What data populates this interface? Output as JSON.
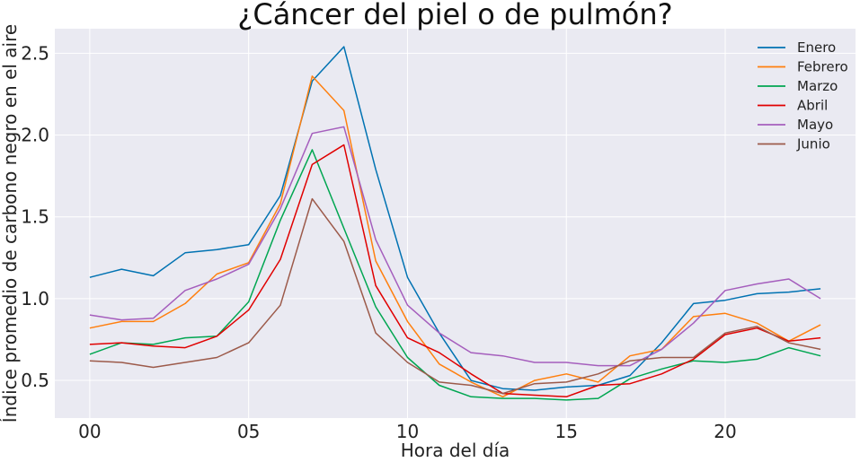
{
  "chart_data": {
    "type": "line",
    "title": "¿Cáncer del piel o de pulmón?",
    "xlabel": "Hora del día",
    "ylabel": "Índice promedio de carbono negro en el aire",
    "xlim": [
      -1.1,
      24.1
    ],
    "ylim": [
      0.27,
      2.65
    ],
    "xticks": [
      0,
      5,
      10,
      15,
      20
    ],
    "xtick_labels": [
      "00",
      "05",
      "10",
      "15",
      "20"
    ],
    "yticks": [
      0.5,
      1.0,
      1.5,
      2.0,
      2.5
    ],
    "ytick_labels": [
      "0.5",
      "1.0",
      "1.5",
      "2.0",
      "2.5"
    ],
    "grid": true,
    "background": "#eaeaf2",
    "legend_position": "top-right",
    "x": [
      0,
      1,
      2,
      3,
      4,
      5,
      6,
      7,
      8,
      9,
      10,
      11,
      12,
      13,
      14,
      15,
      16,
      17,
      18,
      19,
      20,
      21,
      22,
      23
    ],
    "series": [
      {
        "name": "Enero",
        "color": "#0072b2",
        "values": [
          1.13,
          1.18,
          1.14,
          1.28,
          1.3,
          1.33,
          1.63,
          2.33,
          2.54,
          1.79,
          1.13,
          0.79,
          0.5,
          0.45,
          0.44,
          0.46,
          0.47,
          0.53,
          0.73,
          0.97,
          0.99,
          1.03,
          1.04,
          1.06
        ]
      },
      {
        "name": "Febrero",
        "color": "#ff7f0e",
        "values": [
          0.82,
          0.86,
          0.86,
          0.97,
          1.15,
          1.22,
          1.58,
          2.36,
          2.15,
          1.23,
          0.86,
          0.6,
          0.49,
          0.4,
          0.5,
          0.54,
          0.49,
          0.65,
          0.69,
          0.89,
          0.91,
          0.85,
          0.74,
          0.84
        ]
      },
      {
        "name": "Marzo",
        "color": "#00a651",
        "values": [
          0.66,
          0.73,
          0.72,
          0.76,
          0.77,
          0.98,
          1.48,
          1.91,
          1.43,
          0.95,
          0.64,
          0.47,
          0.4,
          0.39,
          0.39,
          0.38,
          0.39,
          0.51,
          0.57,
          0.62,
          0.61,
          0.63,
          0.7,
          0.65
        ]
      },
      {
        "name": "Abril",
        "color": "#e00000",
        "values": [
          0.72,
          0.73,
          0.71,
          0.7,
          0.77,
          0.93,
          1.24,
          1.82,
          1.94,
          1.08,
          0.76,
          0.67,
          0.54,
          0.42,
          0.41,
          0.4,
          0.47,
          0.48,
          0.54,
          0.63,
          0.78,
          0.82,
          0.74,
          0.76
        ]
      },
      {
        "name": "Mayo",
        "color": "#a55ebd",
        "values": [
          0.9,
          0.87,
          0.88,
          1.05,
          1.12,
          1.21,
          1.55,
          2.01,
          2.05,
          1.36,
          0.96,
          0.79,
          0.67,
          0.65,
          0.61,
          0.61,
          0.59,
          0.59,
          0.69,
          0.85,
          1.05,
          1.09,
          1.12,
          1.0
        ]
      },
      {
        "name": "Junio",
        "color": "#9c5a4a",
        "values": [
          0.62,
          0.61,
          0.58,
          0.61,
          0.64,
          0.73,
          0.96,
          1.61,
          1.35,
          0.79,
          0.61,
          0.49,
          0.47,
          0.42,
          0.48,
          0.49,
          0.54,
          0.62,
          0.64,
          0.64,
          0.79,
          0.83,
          0.73,
          0.69
        ]
      }
    ]
  }
}
